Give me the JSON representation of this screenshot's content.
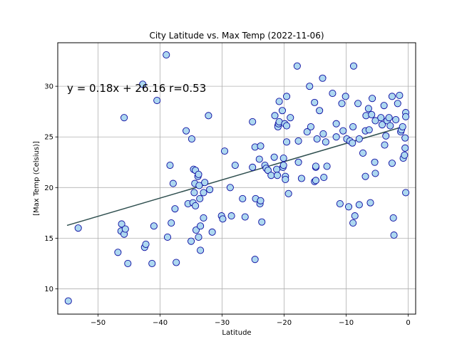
{
  "chart_data": {
    "type": "scatter",
    "title": "City Latitude vs. Max Temp (2022-11-06)",
    "xlabel": "Latitude",
    "ylabel": "[Max Temp (Celsius)]",
    "xlim": [
      -56.5,
      1.2
    ],
    "ylim": [
      7.5,
      34.3
    ],
    "xticks": [
      -50,
      -40,
      -30,
      -20,
      -10,
      0
    ],
    "yticks": [
      10,
      15,
      20,
      25,
      30
    ],
    "xtick_labels": [
      "−50",
      "−40",
      "−30",
      "−20",
      "−10",
      "0"
    ],
    "ytick_labels": [
      "10",
      "15",
      "20",
      "25",
      "30"
    ],
    "grid": true,
    "colors": {
      "point_fill": "#add8f0",
      "point_edge": "#0a0aa0",
      "line": "#2f4f4f"
    },
    "annotation": {
      "text": "y = 0.18x + 26.16 r=0.53",
      "x": -55.0,
      "y": 29.8
    },
    "regression": {
      "slope": 0.18,
      "intercept": 26.16,
      "x_start": -55.0,
      "x_end": -0.5
    },
    "points": [
      [
        -54.8,
        8.8
      ],
      [
        -53.2,
        16.0
      ],
      [
        -46.8,
        13.6
      ],
      [
        -46.2,
        16.4
      ],
      [
        -46.3,
        15.7
      ],
      [
        -45.8,
        15.4
      ],
      [
        -45.6,
        15.9
      ],
      [
        -45.2,
        12.5
      ],
      [
        -45.8,
        26.9
      ],
      [
        -42.8,
        30.2
      ],
      [
        -42.5,
        14.1
      ],
      [
        -42.3,
        14.4
      ],
      [
        -41.3,
        12.5
      ],
      [
        -41.0,
        16.2
      ],
      [
        -40.5,
        28.6
      ],
      [
        -39.0,
        33.1
      ],
      [
        -38.8,
        15.1
      ],
      [
        -38.4,
        22.2
      ],
      [
        -38.2,
        16.5
      ],
      [
        -37.9,
        20.4
      ],
      [
        -37.6,
        17.9
      ],
      [
        -37.4,
        12.6
      ],
      [
        -35.8,
        25.6
      ],
      [
        -35.5,
        18.4
      ],
      [
        -35.0,
        14.7
      ],
      [
        -34.9,
        24.8
      ],
      [
        -34.7,
        18.5
      ],
      [
        -34.6,
        21.8
      ],
      [
        -34.5,
        19.5
      ],
      [
        -34.3,
        21.7
      ],
      [
        -34.4,
        20.4
      ],
      [
        -34.3,
        18.2
      ],
      [
        -34.2,
        15.8
      ],
      [
        -33.9,
        21.1
      ],
      [
        -33.8,
        21.3
      ],
      [
        -33.8,
        15.1
      ],
      [
        -33.7,
        20.2
      ],
      [
        -33.6,
        18.9
      ],
      [
        -33.5,
        16.2
      ],
      [
        -33.5,
        13.8
      ],
      [
        -33.0,
        17.0
      ],
      [
        -33.0,
        19.5
      ],
      [
        -32.8,
        20.5
      ],
      [
        -32.2,
        27.1
      ],
      [
        -32.0,
        19.8
      ],
      [
        -31.6,
        15.6
      ],
      [
        -30.1,
        17.2
      ],
      [
        -29.9,
        16.9
      ],
      [
        -29.6,
        23.6
      ],
      [
        -28.7,
        20.0
      ],
      [
        -28.5,
        17.2
      ],
      [
        -27.9,
        22.2
      ],
      [
        -26.7,
        18.9
      ],
      [
        -26.3,
        17.1
      ],
      [
        -25.1,
        26.5
      ],
      [
        -25.1,
        22.0
      ],
      [
        -24.7,
        24.0
      ],
      [
        -24.7,
        12.9
      ],
      [
        -24.6,
        18.9
      ],
      [
        -24.0,
        22.8
      ],
      [
        -23.9,
        18.4
      ],
      [
        -23.8,
        18.7
      ],
      [
        -23.6,
        16.6
      ],
      [
        -23.8,
        24.1
      ],
      [
        -23.1,
        22.2
      ],
      [
        -22.9,
        21.9
      ],
      [
        -22.6,
        21.7
      ],
      [
        -22.1,
        21.2
      ],
      [
        -21.6,
        23.0
      ],
      [
        -21.5,
        27.1
      ],
      [
        -21.2,
        21.8
      ],
      [
        -21.1,
        21.2
      ],
      [
        -21.0,
        26.1
      ],
      [
        -21.0,
        26.0
      ],
      [
        -20.9,
        26.3
      ],
      [
        -20.8,
        26.5
      ],
      [
        -20.8,
        28.5
      ],
      [
        -20.3,
        27.6
      ],
      [
        -20.1,
        22.9
      ],
      [
        -20.2,
        22.0
      ],
      [
        -20.1,
        22.2
      ],
      [
        -19.9,
        26.3
      ],
      [
        -19.8,
        21.1
      ],
      [
        -19.8,
        20.8
      ],
      [
        -19.6,
        26.1
      ],
      [
        -19.6,
        29.0
      ],
      [
        -19.6,
        24.5
      ],
      [
        -19.3,
        19.4
      ],
      [
        -19.0,
        26.9
      ],
      [
        -17.9,
        32.0
      ],
      [
        -17.7,
        22.5
      ],
      [
        -17.7,
        24.6
      ],
      [
        -17.2,
        20.9
      ],
      [
        -16.3,
        25.5
      ],
      [
        -15.9,
        30.0
      ],
      [
        -15.7,
        26.0
      ],
      [
        -15.1,
        28.4
      ],
      [
        -15.1,
        20.6
      ],
      [
        -14.9,
        20.7
      ],
      [
        -14.9,
        22.0
      ],
      [
        -14.9,
        22.1
      ],
      [
        -14.7,
        24.8
      ],
      [
        -14.3,
        27.6
      ],
      [
        -13.8,
        30.8
      ],
      [
        -13.7,
        25.3
      ],
      [
        -13.6,
        21.0
      ],
      [
        -13.3,
        24.5
      ],
      [
        -13.1,
        22.1
      ],
      [
        -12.2,
        29.3
      ],
      [
        -11.6,
        26.3
      ],
      [
        -11.6,
        25.0
      ],
      [
        -11.0,
        18.4
      ],
      [
        -10.7,
        28.3
      ],
      [
        -10.5,
        25.6
      ],
      [
        -10.1,
        29.0
      ],
      [
        -9.9,
        24.8
      ],
      [
        -9.6,
        18.1
      ],
      [
        -9.4,
        24.6
      ],
      [
        -9.0,
        24.4
      ],
      [
        -8.9,
        26.0
      ],
      [
        -8.9,
        16.5
      ],
      [
        -8.8,
        32.0
      ],
      [
        -8.6,
        17.2
      ],
      [
        -8.1,
        28.3
      ],
      [
        -7.9,
        24.8
      ],
      [
        -7.9,
        18.3
      ],
      [
        -7.3,
        23.4
      ],
      [
        -6.9,
        25.6
      ],
      [
        -6.9,
        21.1
      ],
      [
        -6.8,
        27.1
      ],
      [
        -6.4,
        27.8
      ],
      [
        -6.3,
        25.7
      ],
      [
        -6.1,
        18.5
      ],
      [
        -5.9,
        27.2
      ],
      [
        -5.8,
        28.8
      ],
      [
        -5.4,
        22.5
      ],
      [
        -5.3,
        26.6
      ],
      [
        -5.3,
        21.4
      ],
      [
        -4.4,
        26.9
      ],
      [
        -4.2,
        26.2
      ],
      [
        -3.9,
        28.1
      ],
      [
        -3.8,
        24.2
      ],
      [
        -3.6,
        25.1
      ],
      [
        -3.4,
        26.6
      ],
      [
        -3.1,
        26.9
      ],
      [
        -2.9,
        26.1
      ],
      [
        -2.6,
        22.4
      ],
      [
        -2.6,
        29.0
      ],
      [
        -2.4,
        17.0
      ],
      [
        -2.3,
        15.3
      ],
      [
        -2.0,
        26.7
      ],
      [
        -1.7,
        28.3
      ],
      [
        -1.4,
        29.1
      ],
      [
        -1.2,
        25.5
      ],
      [
        -1.1,
        25.7
      ],
      [
        -0.9,
        26.0
      ],
      [
        -0.8,
        22.9
      ],
      [
        -0.6,
        23.2
      ],
      [
        -0.5,
        23.9
      ],
      [
        -0.5,
        24.9
      ],
      [
        -0.4,
        27.4
      ],
      [
        -0.4,
        27.0
      ],
      [
        -0.4,
        19.5
      ]
    ]
  }
}
